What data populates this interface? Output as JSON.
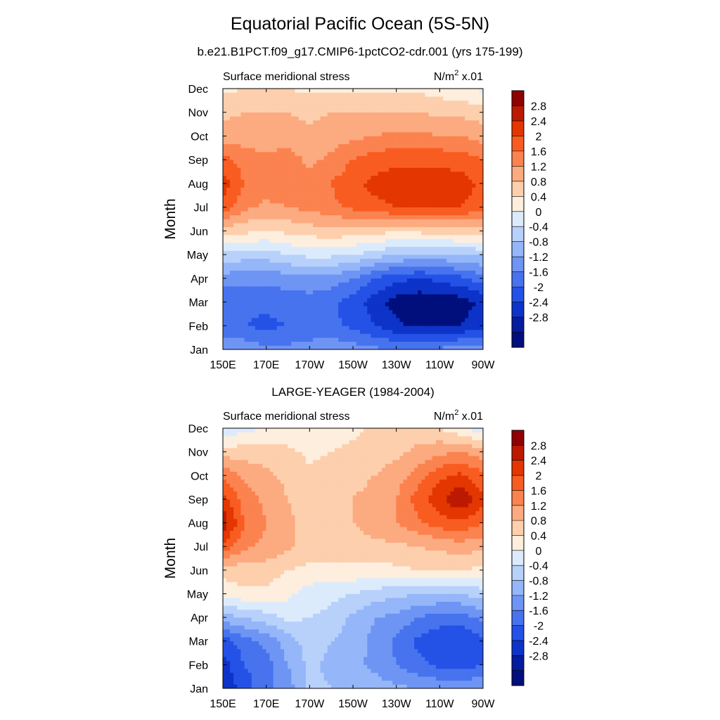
{
  "title": "Equatorial Pacific Ocean (5S-5N)",
  "case_subtitle": "b.e21.B1PCT.f09_g17.CMIP6-1pctCO2-cdr.001 (yrs 175-199)",
  "obs_title": "LARGE-YEAGER (1984-2004)",
  "chart_data": [
    {
      "type": "heatmap",
      "title": "b.e21.B1PCT.f09_g17.CMIP6-1pctCO2-cdr.001 (yrs 175-199)",
      "left_label": "Surface meridional stress",
      "units_base": "N/m",
      "units_sup": "2",
      "units_scale": "x.01",
      "xlabel": "",
      "ylabel": "Month",
      "x_ticks": [
        "150E",
        "170E",
        "170W",
        "150W",
        "130W",
        "110W",
        "90W"
      ],
      "y_ticks": [
        "Jan",
        "Feb",
        "Mar",
        "Apr",
        "May",
        "Jun",
        "Jul",
        "Aug",
        "Sep",
        "Oct",
        "Nov",
        "Dec"
      ],
      "x_range_lon_east": [
        150,
        270
      ],
      "grid_x_lon_east": [
        150,
        160,
        170,
        180,
        190,
        200,
        210,
        220,
        230,
        240,
        250,
        260,
        270
      ],
      "rows_by_month": [
        [
          -1.2,
          -1.3,
          -1.5,
          -1.5,
          -1.4,
          -1.3,
          -1.4,
          -1.5,
          -1.6,
          -1.6,
          -1.5,
          -1.4,
          -1.3
        ],
        [
          -2.0,
          -2.0,
          -2.1,
          -2.0,
          -1.9,
          -1.9,
          -2.1,
          -2.4,
          -2.7,
          -2.9,
          -2.9,
          -2.8,
          -2.5
        ],
        [
          -1.9,
          -1.9,
          -1.9,
          -1.8,
          -1.8,
          -1.9,
          -2.2,
          -2.6,
          -3.0,
          -3.1,
          -3.1,
          -3.0,
          -2.7
        ],
        [
          -1.4,
          -1.5,
          -1.5,
          -1.4,
          -1.3,
          -1.4,
          -1.6,
          -2.0,
          -2.3,
          -2.4,
          -2.3,
          -2.1,
          -1.8
        ],
        [
          -0.5,
          -0.6,
          -0.6,
          -0.4,
          -0.3,
          -0.3,
          -0.4,
          -0.6,
          -0.8,
          -0.9,
          -0.9,
          -0.8,
          -0.7
        ],
        [
          0.6,
          0.5,
          0.4,
          0.5,
          0.6,
          0.7,
          0.6,
          0.5,
          0.5,
          0.5,
          0.6,
          0.6,
          0.6
        ],
        [
          1.9,
          1.3,
          1.1,
          1.2,
          1.3,
          1.5,
          1.7,
          1.9,
          2.0,
          2.0,
          2.0,
          2.0,
          1.8
        ],
        [
          2.2,
          1.6,
          1.4,
          1.5,
          1.4,
          1.6,
          1.9,
          2.1,
          2.2,
          2.2,
          2.2,
          2.2,
          1.9
        ],
        [
          1.8,
          1.4,
          1.3,
          1.4,
          1.1,
          1.3,
          1.6,
          1.8,
          1.9,
          1.9,
          1.9,
          1.8,
          1.6
        ],
        [
          1.0,
          1.0,
          1.0,
          1.0,
          0.9,
          1.0,
          1.1,
          1.2,
          1.3,
          1.3,
          1.2,
          1.2,
          1.0
        ],
        [
          0.7,
          0.8,
          0.8,
          0.8,
          0.7,
          0.8,
          0.8,
          0.8,
          0.8,
          0.8,
          0.7,
          0.7,
          0.6
        ],
        [
          0.3,
          0.4,
          0.4,
          0.4,
          0.3,
          0.3,
          0.3,
          0.3,
          0.3,
          0.3,
          0.2,
          0.1,
          -0.1
        ]
      ],
      "colorbar_ticks": [
        "2.8",
        "2.4",
        "2",
        "1.6",
        "1.2",
        "0.8",
        "0.4",
        "0",
        "-0.4",
        "-0.8",
        "-1.2",
        "-1.6",
        "-2",
        "-2.4",
        "-2.8"
      ],
      "colorbar_colors": [
        "#8f0000",
        "#bc1a00",
        "#e33600",
        "#f95c21",
        "#fb8350",
        "#fcaa80",
        "#fdcfad",
        "#fdeedd",
        "#dcebfc",
        "#b8d1fb",
        "#95b6f8",
        "#6e95f4",
        "#4773ee",
        "#2452e6",
        "#0d33c8",
        "#041c9e",
        "#000f7c"
      ]
    },
    {
      "type": "heatmap",
      "title": "LARGE-YEAGER (1984-2004)",
      "left_label": "Surface meridional stress",
      "units_base": "N/m",
      "units_sup": "2",
      "units_scale": "x.01",
      "xlabel": "",
      "ylabel": "Month",
      "x_ticks": [
        "150E",
        "170E",
        "170W",
        "150W",
        "130W",
        "110W",
        "90W"
      ],
      "y_ticks": [
        "Jan",
        "Feb",
        "Mar",
        "Apr",
        "May",
        "Jun",
        "Jul",
        "Aug",
        "Sep",
        "Oct",
        "Nov",
        "Dec"
      ],
      "x_range_lon_east": [
        150,
        270
      ],
      "grid_x_lon_east": [
        150,
        160,
        170,
        180,
        190,
        200,
        210,
        220,
        230,
        240,
        250,
        260,
        270
      ],
      "rows_by_month": [
        [
          -2.8,
          -2.2,
          -1.7,
          -1.4,
          -0.7,
          -0.8,
          -0.9,
          -1.0,
          -1.1,
          -1.2,
          -1.3,
          -1.3,
          -1.2
        ],
        [
          -2.6,
          -2.0,
          -1.8,
          -1.2,
          -0.7,
          -0.9,
          -1.1,
          -1.3,
          -1.6,
          -1.9,
          -2.1,
          -2.2,
          -2.0
        ],
        [
          -2.2,
          -1.8,
          -1.5,
          -1.0,
          -0.6,
          -0.8,
          -1.0,
          -1.3,
          -1.7,
          -2.1,
          -2.3,
          -2.4,
          -2.1
        ],
        [
          -1.0,
          -0.8,
          -0.6,
          -0.3,
          -0.4,
          -0.5,
          -0.9,
          -1.2,
          -1.3,
          -1.6,
          -1.8,
          -1.8,
          -1.5
        ],
        [
          0.2,
          0.3,
          0.3,
          0.1,
          -0.2,
          -0.3,
          -0.4,
          -0.6,
          -0.7,
          -0.8,
          -0.8,
          -0.8,
          -0.6
        ],
        [
          0.5,
          0.6,
          0.6,
          0.4,
          0.3,
          0.3,
          0.3,
          0.3,
          0.3,
          0.4,
          0.4,
          0.4,
          0.3
        ],
        [
          1.9,
          1.3,
          1.1,
          0.9,
          0.6,
          0.6,
          0.6,
          0.7,
          0.7,
          0.8,
          0.9,
          1.0,
          0.9
        ],
        [
          2.7,
          1.6,
          1.2,
          0.9,
          0.6,
          0.7,
          0.8,
          1.0,
          1.2,
          1.5,
          1.8,
          1.9,
          1.6
        ],
        [
          2.2,
          1.4,
          1.1,
          0.8,
          0.6,
          0.7,
          0.8,
          0.9,
          1.2,
          1.8,
          2.3,
          2.8,
          2.1
        ],
        [
          1.5,
          1.1,
          0.9,
          0.7,
          0.5,
          0.6,
          0.7,
          0.8,
          1.0,
          1.4,
          1.9,
          2.1,
          1.7
        ],
        [
          0.6,
          0.6,
          0.6,
          0.5,
          0.3,
          0.4,
          0.5,
          0.6,
          0.7,
          0.9,
          1.1,
          1.2,
          1.0
        ],
        [
          -0.4,
          -0.1,
          0.0,
          0.1,
          0.2,
          0.2,
          0.3,
          0.5,
          0.6,
          0.6,
          0.4,
          0.1,
          -0.3
        ]
      ],
      "colorbar_ticks": [
        "2.8",
        "2.4",
        "2",
        "1.6",
        "1.2",
        "0.8",
        "0.4",
        "0",
        "-0.4",
        "-0.8",
        "-1.2",
        "-1.6",
        "-2",
        "-2.4",
        "-2.8"
      ],
      "colorbar_colors": [
        "#8f0000",
        "#bc1a00",
        "#e33600",
        "#f95c21",
        "#fb8350",
        "#fcaa80",
        "#fdcfad",
        "#fdeedd",
        "#dcebfc",
        "#b8d1fb",
        "#95b6f8",
        "#6e95f4",
        "#4773ee",
        "#2452e6",
        "#0d33c8",
        "#041c9e",
        "#000f7c"
      ]
    }
  ]
}
